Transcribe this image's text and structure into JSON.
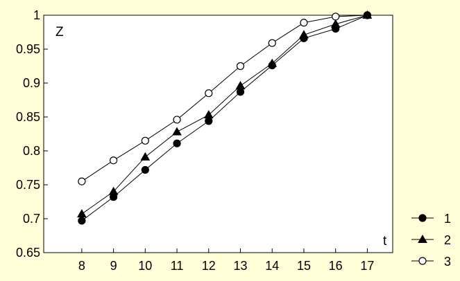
{
  "chart_data": {
    "type": "line",
    "title": "",
    "xlabel": "t",
    "ylabel": "Z",
    "x": [
      8,
      9,
      10,
      11,
      12,
      13,
      14,
      15,
      16,
      17
    ],
    "xlim": [
      6.8,
      17.8
    ],
    "ylim": [
      0.65,
      1.0
    ],
    "yticks": [
      0.65,
      0.7,
      0.75,
      0.8,
      0.85,
      0.9,
      0.95,
      1.0
    ],
    "ytick_labels": [
      "0.65",
      "0.7",
      "0.75",
      "0.8",
      "0.85",
      "0.9",
      "0.95",
      "1"
    ],
    "xtick_labels": [
      "8",
      "9",
      "10",
      "11",
      "12",
      "13",
      "14",
      "15",
      "16",
      "17"
    ],
    "grid": false,
    "legend_position": "right-bottom-outside",
    "series": [
      {
        "name": "1",
        "marker": "circle-filled",
        "color": "#000000",
        "values": [
          0.697,
          0.732,
          0.772,
          0.811,
          0.844,
          0.887,
          0.926,
          0.966,
          0.98,
          1.0
        ]
      },
      {
        "name": "2",
        "marker": "triangle-filled",
        "color": "#000000",
        "values": [
          0.707,
          0.74,
          0.791,
          0.828,
          0.853,
          0.896,
          0.929,
          0.971,
          0.987,
          1.0
        ]
      },
      {
        "name": "3",
        "marker": "circle-open",
        "color": "#000000",
        "values": [
          0.755,
          0.786,
          0.815,
          0.846,
          0.885,
          0.925,
          0.959,
          0.989,
          0.998,
          1.0
        ]
      }
    ]
  },
  "colors": {
    "background": "#fffed8",
    "plot_background": "#ffffff",
    "line": "#000000"
  }
}
